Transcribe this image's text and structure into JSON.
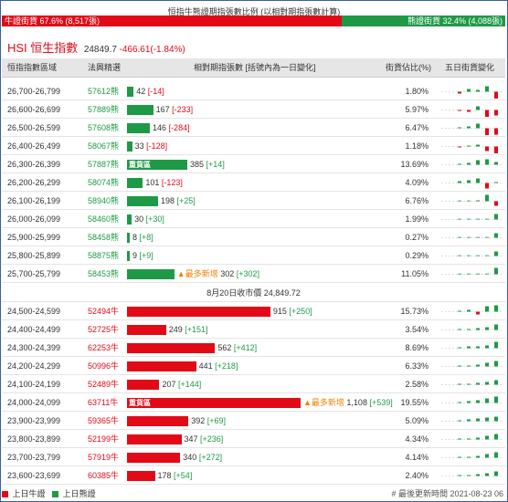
{
  "title": "恒指牛熊證期指張數比例 (以相對期指張數計算)",
  "ratio": {
    "bull_label": "牛證街貨 67.6% (8,517張)",
    "bear_label": "熊證街貨 32.4% (4,088張)",
    "bull_fraction": 0.676,
    "bull_color": "#e20a17",
    "bear_color": "#1e9a47"
  },
  "index": {
    "name": "HSI 恒生指數",
    "value": "24849.7",
    "change": "-466.61(-1.84%)"
  },
  "header": {
    "range": "恒指指數區域",
    "code": "法興精選",
    "contracts": "相對期指張數 [括號內為一日變化]",
    "pct": "街貨佔比(%)",
    "trend": "五日街貨變化"
  },
  "bar_scale_max": 1108,
  "bear_rows": [
    {
      "range": "26,700-26,799",
      "code": "57612熊",
      "qty": 42,
      "qty_text": "42",
      "chg": "[-14]",
      "pct": "1.80%",
      "spark": [
        -2,
        3,
        2,
        6,
        -8
      ]
    },
    {
      "range": "26,600-26,699",
      "code": "57889熊",
      "qty": 167,
      "qty_text": "167",
      "chg": "[-233]",
      "pct": "5.97%",
      "spark": [
        -1,
        -2,
        4,
        -9,
        -6
      ]
    },
    {
      "range": "26,500-26,599",
      "code": "57608熊",
      "qty": 146,
      "qty_text": "146",
      "chg": "[-284]",
      "pct": "6.47%",
      "spark": [
        1,
        2,
        5,
        -8,
        -7
      ]
    },
    {
      "range": "26,400-26,499",
      "code": "58067熊",
      "qty": 33,
      "qty_text": "33",
      "chg": "[-128]",
      "pct": "1.18%",
      "spark": [
        -1,
        1,
        2,
        -5,
        -8
      ]
    },
    {
      "range": "26,300-26,399",
      "code": "57887熊",
      "qty": 385,
      "qty_text": "385",
      "chg": "[+14]",
      "pct": "13.69%",
      "spark": [
        1,
        2,
        5,
        6,
        3
      ],
      "heavy": "重貨區"
    },
    {
      "range": "26,200-26,299",
      "code": "58074熊",
      "qty": 101,
      "qty_text": "101",
      "chg": "[-123]",
      "pct": "4.09%",
      "spark": [
        2,
        3,
        5,
        -6,
        1
      ]
    },
    {
      "range": "26,100-26,199",
      "code": "58940熊",
      "qty": 198,
      "qty_text": "198",
      "chg": "[+25]",
      "pct": "6.76%",
      "spark": [
        0,
        0,
        1,
        7,
        -5
      ]
    },
    {
      "range": "26,000-26,099",
      "code": "58460熊",
      "qty": 30,
      "qty_text": "30",
      "chg": "[+30]",
      "pct": "1.99%",
      "spark": [
        0,
        0,
        0,
        0,
        6
      ]
    },
    {
      "range": "25,900-25,999",
      "code": "58458熊",
      "qty": 8,
      "qty_text": "8",
      "chg": "[+8]",
      "pct": "0.27%",
      "spark": [
        0,
        0,
        0,
        0,
        5
      ]
    },
    {
      "range": "25,800-25,899",
      "code": "58875熊",
      "qty": 9,
      "qty_text": "9",
      "chg": "[+9]",
      "pct": "0.29%",
      "spark": [
        0,
        0,
        0,
        0,
        5
      ]
    },
    {
      "range": "25,700-25,799",
      "code": "58453熊",
      "qty": 302,
      "qty_text": "302",
      "chg": "[+302]",
      "pct": "11.05%",
      "spark": [
        0,
        0,
        0,
        0,
        7
      ],
      "most_new": "▲最多新增"
    }
  ],
  "close_note": "8月20日收市價 24,849.72",
  "bull_rows": [
    {
      "range": "24,500-24,599",
      "code": "52494牛",
      "qty": 915,
      "qty_text": "915",
      "chg": "[+250]",
      "pct": "15.73%",
      "spark": [
        1,
        2,
        -3,
        6,
        7
      ]
    },
    {
      "range": "24,400-24,499",
      "code": "52725牛",
      "qty": 249,
      "qty_text": "249",
      "chg": "[+151]",
      "pct": "3.54%",
      "spark": [
        1,
        1,
        2,
        3,
        6
      ]
    },
    {
      "range": "24,300-24,399",
      "code": "62253牛",
      "qty": 562,
      "qty_text": "562",
      "chg": "[+412]",
      "pct": "8.69%",
      "spark": [
        1,
        2,
        2,
        3,
        7
      ]
    },
    {
      "range": "24,200-24,299",
      "code": "50996牛",
      "qty": 441,
      "qty_text": "441",
      "chg": "[+218]",
      "pct": "6.33%",
      "spark": [
        1,
        1,
        2,
        4,
        6
      ]
    },
    {
      "range": "24,100-24,199",
      "code": "52489牛",
      "qty": 207,
      "qty_text": "207",
      "chg": "[+144]",
      "pct": "2.58%",
      "spark": [
        1,
        1,
        2,
        3,
        5
      ]
    },
    {
      "range": "24,000-24,099",
      "code": "63711牛",
      "qty": 1108,
      "qty_text": "1,108",
      "chg": "[+539]",
      "pct": "19.55%",
      "spark": [
        1,
        2,
        3,
        5,
        7
      ],
      "heavy": "重貨區",
      "most_new": "▲最多新增"
    },
    {
      "range": "23,900-23,999",
      "code": "59365牛",
      "qty": 392,
      "qty_text": "392",
      "chg": "[+69]",
      "pct": "5.09%",
      "spark": [
        1,
        2,
        3,
        4,
        5
      ]
    },
    {
      "range": "23,800-23,899",
      "code": "52199牛",
      "qty": 347,
      "qty_text": "347",
      "chg": "[+236]",
      "pct": "4.34%",
      "spark": [
        1,
        1,
        2,
        4,
        6
      ]
    },
    {
      "range": "23,700-23,799",
      "code": "57919牛",
      "qty": 340,
      "qty_text": "340",
      "chg": "[+272]",
      "pct": "4.14%",
      "spark": [
        1,
        1,
        2,
        4,
        6
      ]
    },
    {
      "range": "23,600-23,699",
      "code": "60385牛",
      "qty": 178,
      "qty_text": "178",
      "chg": "[+54]",
      "pct": "2.40%",
      "spark": [
        1,
        1,
        2,
        3,
        5
      ]
    }
  ],
  "footer": {
    "legend_up": "上日牛證",
    "legend_down": "上日熊證",
    "updated": "# 最後更新時間  2021-08-23 06"
  }
}
